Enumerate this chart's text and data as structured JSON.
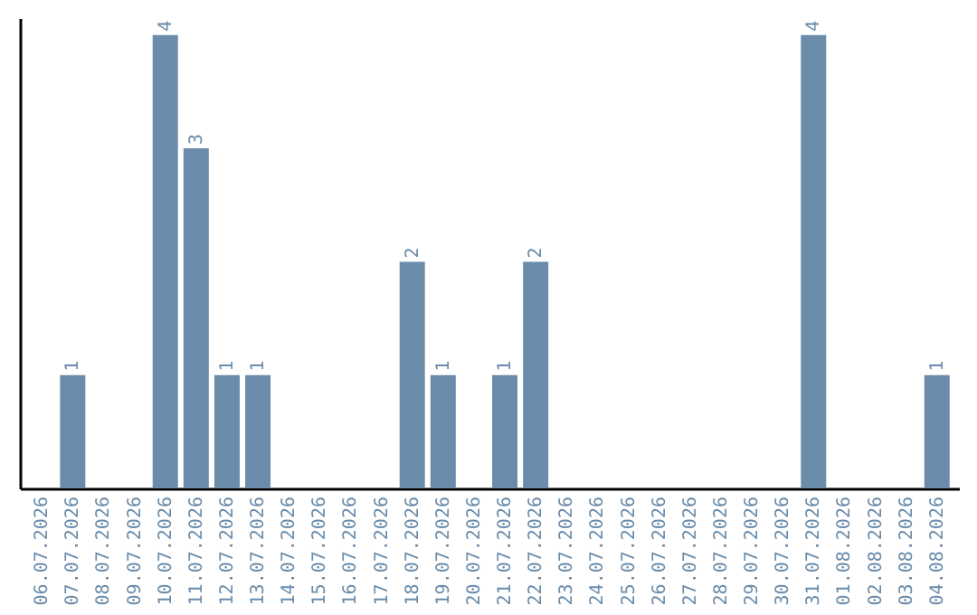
{
  "chart_data": {
    "type": "bar",
    "categories": [
      "06.07.2026",
      "07.07.2026",
      "08.07.2026",
      "09.07.2026",
      "10.07.2026",
      "11.07.2026",
      "12.07.2026",
      "13.07.2026",
      "14.07.2026",
      "15.07.2026",
      "16.07.2026",
      "17.07.2026",
      "18.07.2026",
      "19.07.2026",
      "20.07.2026",
      "21.07.2026",
      "22.07.2026",
      "23.07.2026",
      "24.07.2026",
      "25.07.2026",
      "26.07.2026",
      "27.07.2026",
      "28.07.2026",
      "29.07.2026",
      "30.07.2026",
      "31.07.2026",
      "01.08.2026",
      "02.08.2026",
      "03.08.2026",
      "04.08.2026"
    ],
    "values": [
      0,
      1,
      0,
      0,
      4,
      3,
      1,
      1,
      0,
      0,
      0,
      0,
      2,
      1,
      0,
      1,
      2,
      0,
      0,
      0,
      0,
      0,
      0,
      0,
      0,
      4,
      0,
      0,
      0,
      1
    ],
    "value_labels": [
      null,
      "1",
      null,
      null,
      "4",
      "3",
      "1",
      "1",
      null,
      null,
      null,
      null,
      "2",
      "1",
      null,
      "1",
      "2",
      null,
      null,
      null,
      null,
      null,
      null,
      null,
      null,
      "4",
      null,
      null,
      null,
      "1"
    ],
    "color": "#6a8caa",
    "ylim": [
      0,
      4.15
    ],
    "tick_labels": "x"
  }
}
